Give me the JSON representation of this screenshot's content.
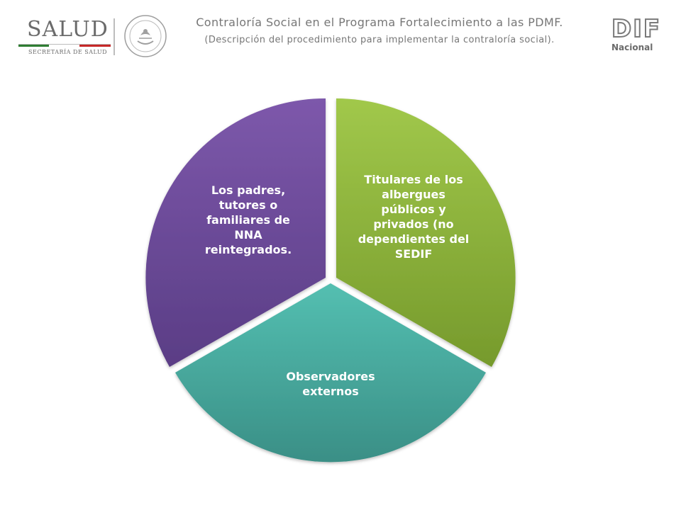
{
  "header": {
    "title": "Contraloría Social en el Programa Fortalecimiento a las PDMF.",
    "subtitle": "(Descripción del procedimiento para implementar la contraloría social).",
    "logo_left": "SALUD",
    "logo_left_sub": "SECRETARÍA DE SALUD",
    "logo_right": "DIF",
    "logo_right_sub": "Nacional"
  },
  "diagram": {
    "type": "cycle-segments",
    "segments": [
      {
        "label": "Titulares de los albergues públicos y privados (no dependientes del SEDIF",
        "color": "#8cb23a"
      },
      {
        "label": "Observadores externos",
        "color": "#4aaba0"
      },
      {
        "label": "Los padres, tutores o familiares de NNA reintegrados.",
        "color": "#6a4a98"
      }
    ]
  },
  "colors": {
    "text_gray": "#777777",
    "green": "#8cb23a",
    "teal": "#4aaba0",
    "purple": "#6a4a98"
  }
}
